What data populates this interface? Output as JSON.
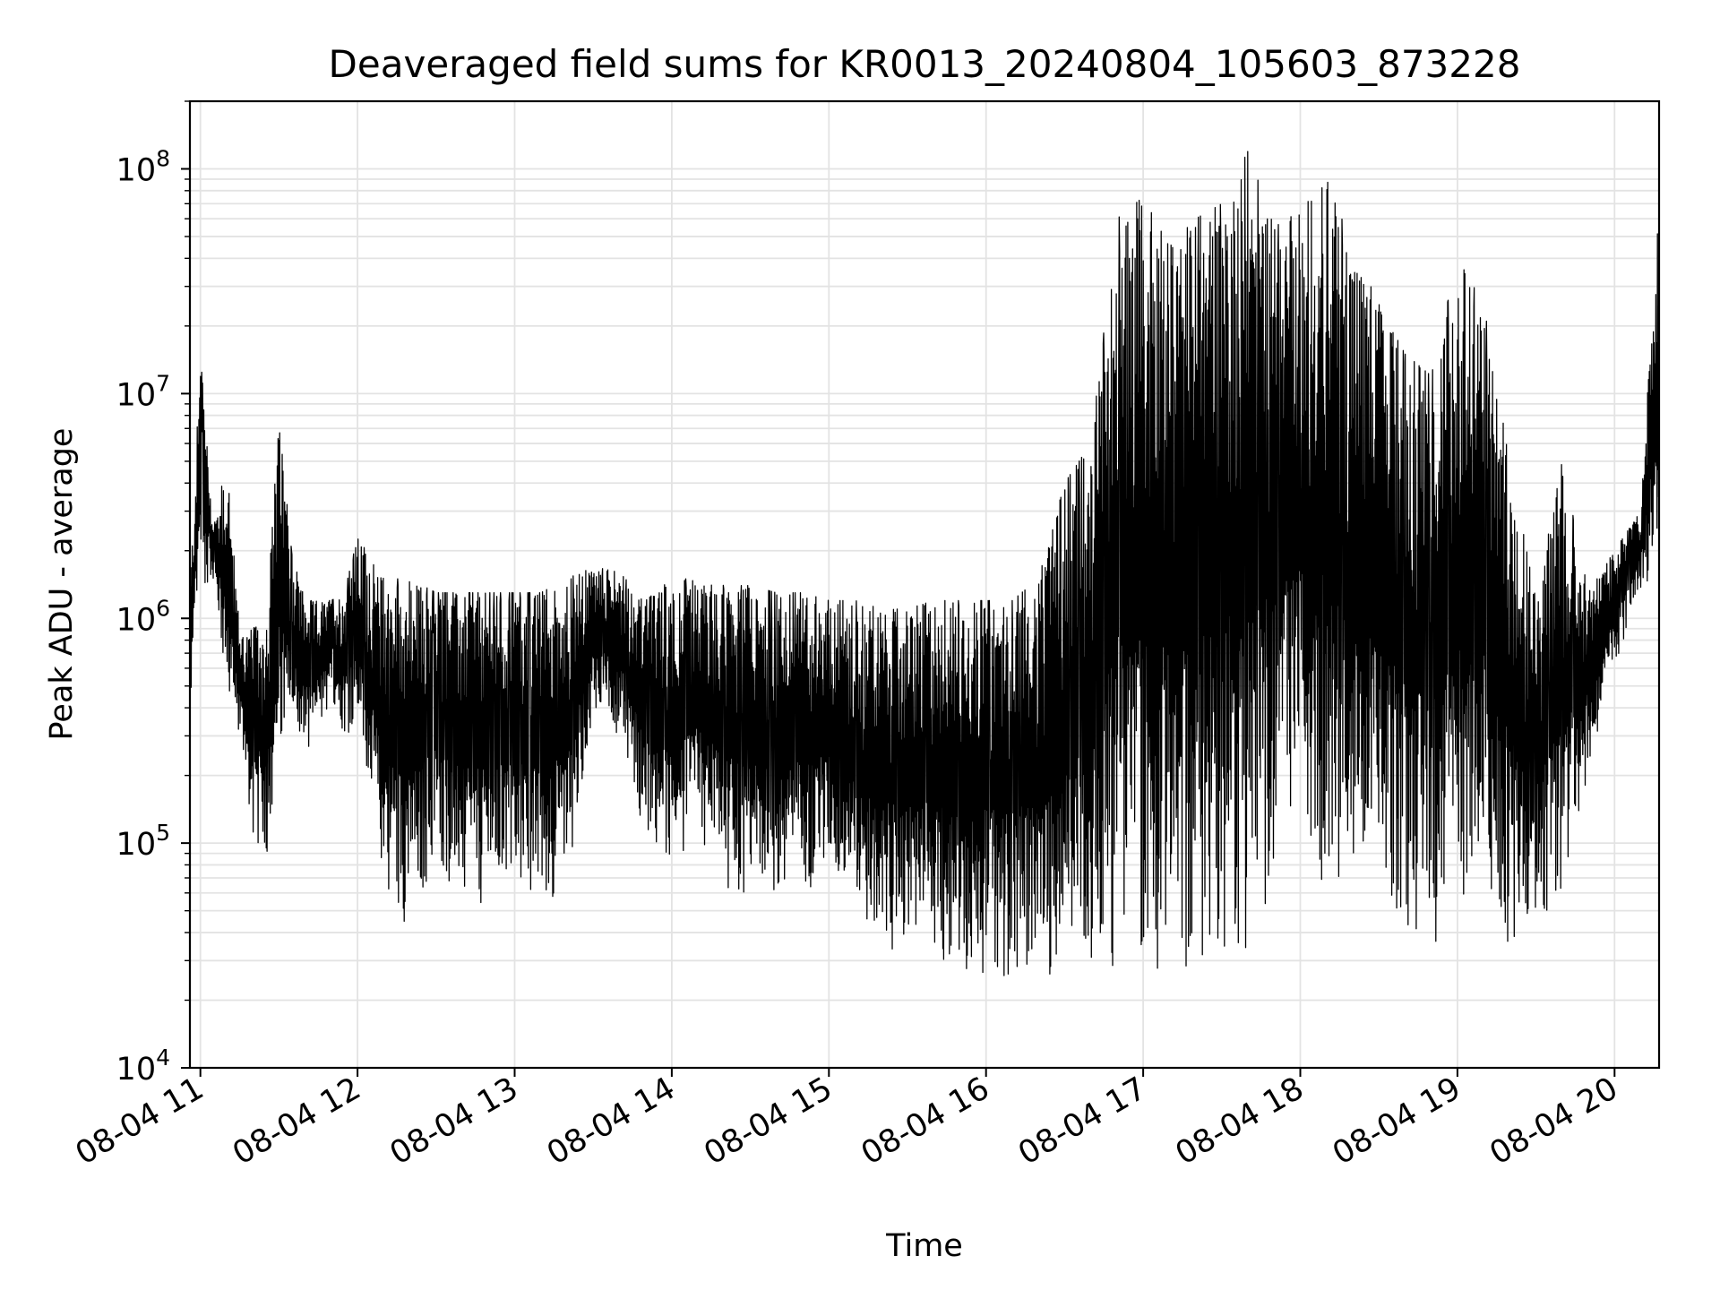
{
  "chart_data": {
    "type": "line",
    "title": "Deaveraged field sums for KR0013_20240804_105603_873228",
    "xlabel": "Time",
    "ylabel": "Peak ADU - average",
    "yscale": "log",
    "ylim": [
      10000,
      200000000
    ],
    "xlim": [
      "2024-08-04 10:56",
      "2024-08-04 20:17"
    ],
    "grid": true,
    "line_color": "#000000",
    "x_ticks": [
      "08-04 11",
      "08-04 12",
      "08-04 13",
      "08-04 14",
      "08-04 15",
      "08-04 16",
      "08-04 17",
      "08-04 18",
      "08-04 19",
      "08-04 20"
    ],
    "y_ticks": [
      {
        "base": "10",
        "exp": "4"
      },
      {
        "base": "10",
        "exp": "5"
      },
      {
        "base": "10",
        "exp": "6"
      },
      {
        "base": "10",
        "exp": "7"
      },
      {
        "base": "10",
        "exp": "8"
      }
    ],
    "series": [
      {
        "x": [
          "2024-08-04 10:56",
          "2024-08-04 11:00",
          "2024-08-04 11:05",
          "2024-08-04 11:10",
          "2024-08-04 11:15",
          "2024-08-04 11:20",
          "2024-08-04 11:25",
          "2024-08-04 11:30",
          "2024-08-04 11:35",
          "2024-08-04 11:40",
          "2024-08-04 11:45",
          "2024-08-04 11:50",
          "2024-08-04 11:55",
          "2024-08-04 12:00",
          "2024-08-04 12:10",
          "2024-08-04 12:20",
          "2024-08-04 12:30",
          "2024-08-04 12:40",
          "2024-08-04 12:50",
          "2024-08-04 13:00",
          "2024-08-04 13:10",
          "2024-08-04 13:20",
          "2024-08-04 13:30",
          "2024-08-04 13:40",
          "2024-08-04 13:50",
          "2024-08-04 14:00",
          "2024-08-04 14:10",
          "2024-08-04 14:20",
          "2024-08-04 14:30",
          "2024-08-04 14:40",
          "2024-08-04 14:50",
          "2024-08-04 15:00",
          "2024-08-04 15:10",
          "2024-08-04 15:20",
          "2024-08-04 15:30",
          "2024-08-04 15:40",
          "2024-08-04 15:50",
          "2024-08-04 16:00",
          "2024-08-04 16:10",
          "2024-08-04 16:20",
          "2024-08-04 16:30",
          "2024-08-04 16:40",
          "2024-08-04 16:50",
          "2024-08-04 17:00",
          "2024-08-04 17:10",
          "2024-08-04 17:20",
          "2024-08-04 17:30",
          "2024-08-04 17:40",
          "2024-08-04 17:50",
          "2024-08-04 18:00",
          "2024-08-04 18:10",
          "2024-08-04 18:20",
          "2024-08-04 18:30",
          "2024-08-04 18:40",
          "2024-08-04 18:50",
          "2024-08-04 19:00",
          "2024-08-04 19:10",
          "2024-08-04 19:20",
          "2024-08-04 19:30",
          "2024-08-04 19:40",
          "2024-08-04 19:50",
          "2024-08-04 20:00",
          "2024-08-04 20:10",
          "2024-08-04 20:17"
        ],
        "low": [
          350000,
          1300000,
          1500000,
          400000,
          300000,
          100000,
          80000,
          200000,
          300000,
          250000,
          300000,
          400000,
          300000,
          300000,
          60000,
          40000,
          80000,
          50000,
          50000,
          60000,
          50000,
          60000,
          400000,
          300000,
          100000,
          60000,
          100000,
          60000,
          50000,
          50000,
          60000,
          70000,
          40000,
          30000,
          30000,
          30000,
          25000,
          25000,
          25000,
          25000,
          25000,
          25000,
          25000,
          25000,
          25000,
          25000,
          30000,
          30000,
          60000,
          90000,
          60000,
          40000,
          50000,
          40000,
          30000,
          40000,
          40000,
          30000,
          40000,
          50000,
          200000,
          600000,
          1300000,
          1500000
        ],
        "high": [
          1300000,
          15000000,
          2500000,
          5000000,
          900000,
          900000,
          1000000,
          7500000,
          1900000,
          1200000,
          1200000,
          1200000,
          1300000,
          2300000,
          1500000,
          1500000,
          1300000,
          1300000,
          1300000,
          1300000,
          1300000,
          1500000,
          1700000,
          1600000,
          1200000,
          1500000,
          1500000,
          1400000,
          1400000,
          1300000,
          1300000,
          1200000,
          1200000,
          1100000,
          1100000,
          1200000,
          1200000,
          1200000,
          1200000,
          1500000,
          4000000,
          6000000,
          60000000,
          75000000,
          45000000,
          60000000,
          70000000,
          120000000,
          55000000,
          65000000,
          90000000,
          45000000,
          25000000,
          15000000,
          12000000,
          40000000,
          25000000,
          5000000,
          1200000,
          5000000,
          1300000,
          2000000,
          3000000,
          75000000
        ]
      }
    ]
  }
}
